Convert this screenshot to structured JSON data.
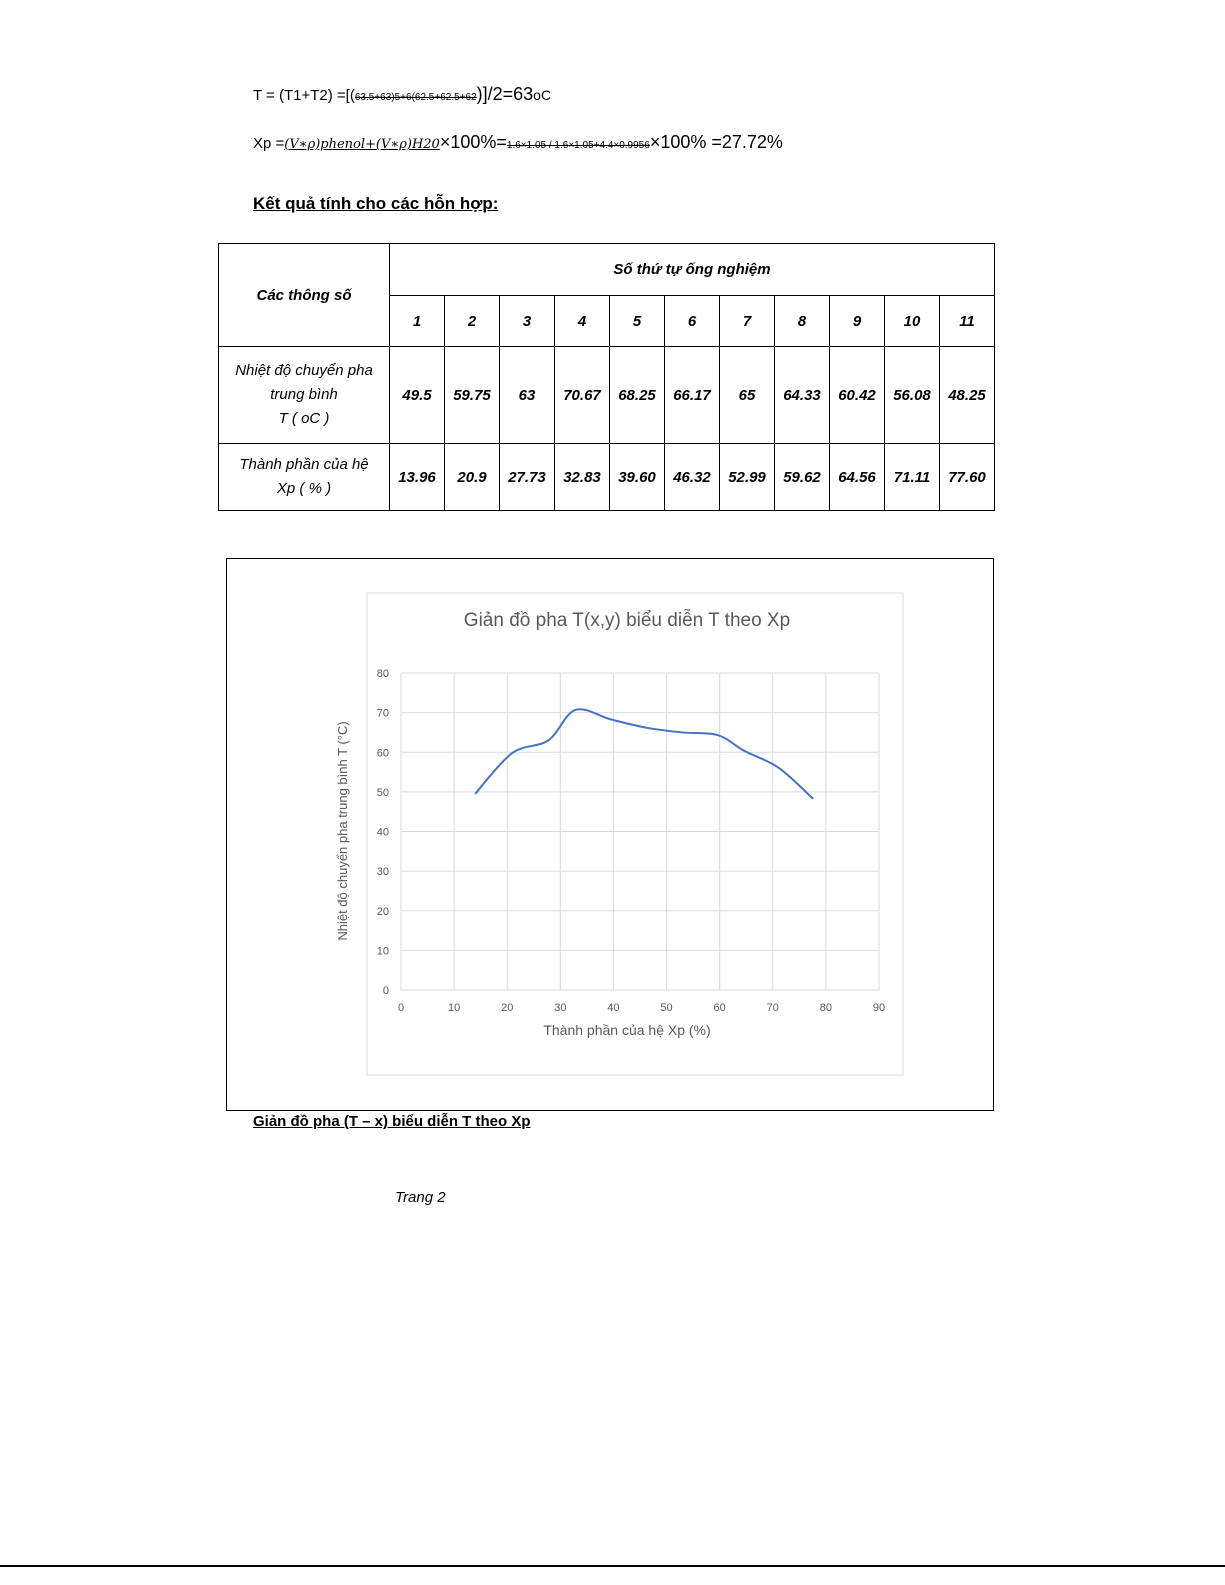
{
  "formulas": {
    "t_avg": {
      "lhs": "T  = (T1+T2) =[(",
      "mid": "63.5+63)5+6(62.5+62.5+62",
      "rhs": ")]/2=63",
      "unit": "oC"
    },
    "xp": {
      "lhs": "Xp =",
      "frac": "(V∗ρ)phenol+(V∗ρ)H20",
      "mid": "×100%=",
      "frac2": "1.6×1.05 / 1.6×1.05+4.4×0.9956",
      "rhs": "×100% =27.72%"
    }
  },
  "heading": "Kết quả tính cho các hỗn hợp:",
  "table": {
    "param_header": "Các thông số",
    "group_header": "Số thứ tự ống nghiệm",
    "columns": [
      "1",
      "2",
      "3",
      "4",
      "5",
      "6",
      "7",
      "8",
      "9",
      "10",
      "11"
    ],
    "rows": [
      {
        "label_lines": [
          "Nhiệt độ chuyển pha",
          "trung bình",
          "T  ( oC )"
        ],
        "values": [
          "49.5",
          "59.75",
          "63",
          "70.67",
          "68.25",
          "66.17",
          "65",
          "64.33",
          "60.42",
          "56.08",
          "48.25"
        ]
      },
      {
        "label_lines": [
          "Thành phần của hệ",
          "Xp (  %  )"
        ],
        "values": [
          "13.96",
          "20.9",
          "27.73",
          "32.83",
          "39.60",
          "46.32",
          "52.99",
          "59.62",
          "64.56",
          "71.11",
          "77.60"
        ]
      }
    ]
  },
  "chart_data": {
    "type": "line",
    "title": "Giản đồ pha T(x,y) biểu diễn T theo Xp",
    "xlabel": "Thành phần của hệ Xp (%)",
    "ylabel": "Nhiệt độ chuyển pha trung bình T (°C)",
    "xlim": [
      0,
      90
    ],
    "ylim": [
      0,
      80
    ],
    "xticks": [
      0,
      10,
      20,
      30,
      40,
      50,
      60,
      70,
      80,
      90
    ],
    "yticks": [
      0,
      10,
      20,
      30,
      40,
      50,
      60,
      70,
      80
    ],
    "grid": true,
    "smooth": true,
    "line_color": "#4472c4",
    "x": [
      13.96,
      20.9,
      27.73,
      32.83,
      39.6,
      46.32,
      52.99,
      59.62,
      64.56,
      71.11,
      77.6
    ],
    "y": [
      49.5,
      59.75,
      63,
      70.67,
      68.25,
      66.17,
      65,
      64.33,
      60.42,
      56.08,
      48.25
    ]
  },
  "caption": "Giản đồ pha (T – x) biểu diễn T theo Xp",
  "page_number": "Trang 2"
}
